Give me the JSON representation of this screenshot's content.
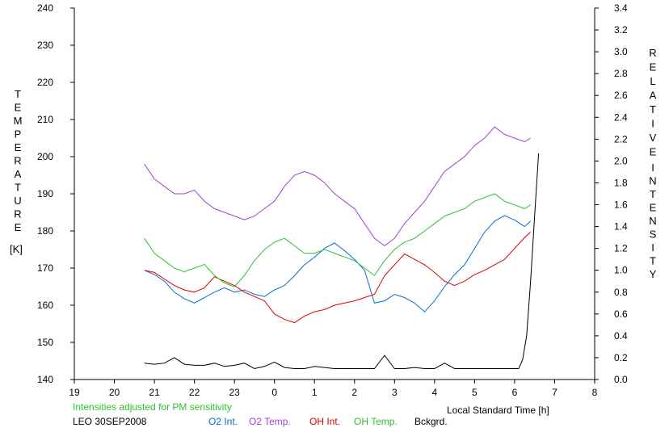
{
  "chart_data": {
    "type": "line",
    "title": "",
    "left_axis": {
      "label_letters": [
        "T",
        "E",
        "M",
        "P",
        "E",
        "R",
        "A",
        "T",
        "U",
        "R",
        "E"
      ],
      "unit": "[K]",
      "range": [
        140,
        240
      ],
      "ticks": [
        "140",
        "150",
        "160",
        "170",
        "180",
        "190",
        "200",
        "210",
        "220",
        "230",
        "240"
      ]
    },
    "right_axis": {
      "label_word1": [
        "R",
        "E",
        "L",
        "A",
        "T",
        "I",
        "V",
        "E"
      ],
      "label_word2": [
        "I",
        "N",
        "T",
        "E",
        "N",
        "S",
        "I",
        "T",
        "Y"
      ],
      "range": [
        0.0,
        3.4
      ],
      "ticks": [
        "0.0",
        "0.2",
        "0.4",
        "0.6",
        "0.8",
        "1.0",
        "1.2",
        "1.4",
        "1.6",
        "1.8",
        "2.0",
        "2.2",
        "2.4",
        "2.6",
        "2.8",
        "3.0",
        "3.2",
        "3.4"
      ]
    },
    "x_axis": {
      "label": "Local Standard Time [h]",
      "range": [
        19,
        32
      ],
      "ticks": [
        "19",
        "20",
        "21",
        "22",
        "23",
        "0",
        "1",
        "2",
        "3",
        "4",
        "5",
        "6",
        "7",
        "8"
      ]
    },
    "note": "Intensities adjusted for PM sensitivity",
    "station": "LEO 30SEP2008",
    "grid": false,
    "legend_position": "bottom",
    "series": [
      {
        "name": "O2 Int.",
        "axis": "right",
        "color": "#0070d0",
        "x": [
          20.75,
          21.0,
          21.25,
          21.5,
          21.75,
          22.0,
          22.25,
          22.5,
          22.75,
          23.0,
          23.25,
          23.5,
          23.75,
          24.0,
          24.25,
          24.5,
          24.75,
          25.0,
          25.25,
          25.5,
          25.75,
          26.0,
          26.25,
          26.5,
          26.75,
          27.0,
          27.25,
          27.5,
          27.75,
          28.0,
          28.25,
          28.5,
          28.75,
          29.0,
          29.25,
          29.5,
          29.75,
          30.0,
          30.25,
          30.4
        ],
        "y": [
          1.0,
          0.96,
          0.9,
          0.8,
          0.74,
          0.7,
          0.75,
          0.8,
          0.84,
          0.8,
          0.82,
          0.78,
          0.76,
          0.82,
          0.86,
          0.95,
          1.05,
          1.12,
          1.2,
          1.25,
          1.18,
          1.1,
          1.0,
          0.7,
          0.72,
          0.78,
          0.75,
          0.7,
          0.62,
          0.72,
          0.85,
          0.96,
          1.05,
          1.2,
          1.35,
          1.45,
          1.5,
          1.46,
          1.4,
          1.45
        ]
      },
      {
        "name": "O2 Temp.",
        "axis": "left",
        "color": "#a040d0",
        "x": [
          20.75,
          21.0,
          21.25,
          21.5,
          21.75,
          22.0,
          22.25,
          22.5,
          22.75,
          23.0,
          23.25,
          23.5,
          23.75,
          24.0,
          24.25,
          24.5,
          24.75,
          25.0,
          25.25,
          25.5,
          25.75,
          26.0,
          26.25,
          26.5,
          26.75,
          27.0,
          27.25,
          27.5,
          27.75,
          28.0,
          28.25,
          28.5,
          28.75,
          29.0,
          29.25,
          29.5,
          29.75,
          30.0,
          30.25,
          30.4
        ],
        "y": [
          198,
          194,
          192,
          190,
          190,
          191,
          188,
          186,
          185,
          184,
          183,
          184,
          186,
          188,
          192,
          195,
          196,
          195,
          193,
          190,
          188,
          186,
          182,
          178,
          176,
          178,
          182,
          185,
          188,
          192,
          196,
          198,
          200,
          203,
          205,
          208,
          206,
          205,
          204,
          205
        ]
      },
      {
        "name": "OH Int.",
        "axis": "right",
        "color": "#e00000",
        "x": [
          20.75,
          21.0,
          21.25,
          21.5,
          21.75,
          22.0,
          22.25,
          22.5,
          22.75,
          23.0,
          23.25,
          23.5,
          23.75,
          24.0,
          24.25,
          24.5,
          24.75,
          25.0,
          25.25,
          25.5,
          25.75,
          26.0,
          26.25,
          26.5,
          26.75,
          27.0,
          27.25,
          27.5,
          27.75,
          28.0,
          28.25,
          28.5,
          28.75,
          29.0,
          29.25,
          29.5,
          29.75,
          30.0,
          30.25,
          30.4
        ],
        "y": [
          1.0,
          0.98,
          0.92,
          0.86,
          0.82,
          0.8,
          0.84,
          0.94,
          0.9,
          0.86,
          0.8,
          0.76,
          0.72,
          0.6,
          0.55,
          0.52,
          0.58,
          0.62,
          0.64,
          0.68,
          0.7,
          0.72,
          0.75,
          0.78,
          0.95,
          1.05,
          1.15,
          1.1,
          1.05,
          0.98,
          0.9,
          0.86,
          0.9,
          0.96,
          1.0,
          1.05,
          1.1,
          1.2,
          1.3,
          1.35
        ]
      },
      {
        "name": "OH Temp.",
        "axis": "left",
        "color": "#30c030",
        "x": [
          20.75,
          21.0,
          21.25,
          21.5,
          21.75,
          22.0,
          22.25,
          22.5,
          22.75,
          23.0,
          23.25,
          23.5,
          23.75,
          24.0,
          24.25,
          24.5,
          24.75,
          25.0,
          25.25,
          25.5,
          25.75,
          26.0,
          26.25,
          26.5,
          26.75,
          27.0,
          27.25,
          27.5,
          27.75,
          28.0,
          28.25,
          28.5,
          28.75,
          29.0,
          29.25,
          29.5,
          29.75,
          30.0,
          30.25,
          30.4
        ],
        "y": [
          178,
          174,
          172,
          170,
          169,
          170,
          171,
          168,
          166,
          165,
          168,
          172,
          175,
          177,
          178,
          176,
          174,
          174,
          175,
          174,
          173,
          172,
          170,
          168,
          172,
          175,
          177,
          178,
          180,
          182,
          184,
          185,
          186,
          188,
          189,
          190,
          188,
          187,
          186,
          187
        ]
      },
      {
        "name": "Bckgrd.",
        "axis": "right",
        "color": "#000000",
        "x": [
          20.75,
          21.0,
          21.25,
          21.5,
          21.75,
          22.0,
          22.25,
          22.5,
          22.75,
          23.0,
          23.25,
          23.5,
          23.75,
          24.0,
          24.25,
          24.5,
          24.75,
          25.0,
          25.25,
          25.5,
          25.75,
          26.0,
          26.25,
          26.5,
          26.75,
          27.0,
          27.25,
          27.5,
          27.75,
          28.0,
          28.25,
          28.5,
          28.75,
          29.0,
          29.25,
          29.5,
          29.75,
          30.0,
          30.1,
          30.2,
          30.3,
          30.4,
          30.5,
          30.6
        ],
        "y": [
          0.15,
          0.14,
          0.15,
          0.2,
          0.14,
          0.13,
          0.13,
          0.15,
          0.12,
          0.13,
          0.15,
          0.1,
          0.12,
          0.16,
          0.11,
          0.1,
          0.1,
          0.12,
          0.11,
          0.1,
          0.1,
          0.1,
          0.1,
          0.1,
          0.22,
          0.1,
          0.1,
          0.11,
          0.1,
          0.1,
          0.15,
          0.1,
          0.1,
          0.1,
          0.1,
          0.1,
          0.1,
          0.1,
          0.1,
          0.18,
          0.4,
          0.9,
          1.5,
          2.07
        ]
      }
    ]
  }
}
